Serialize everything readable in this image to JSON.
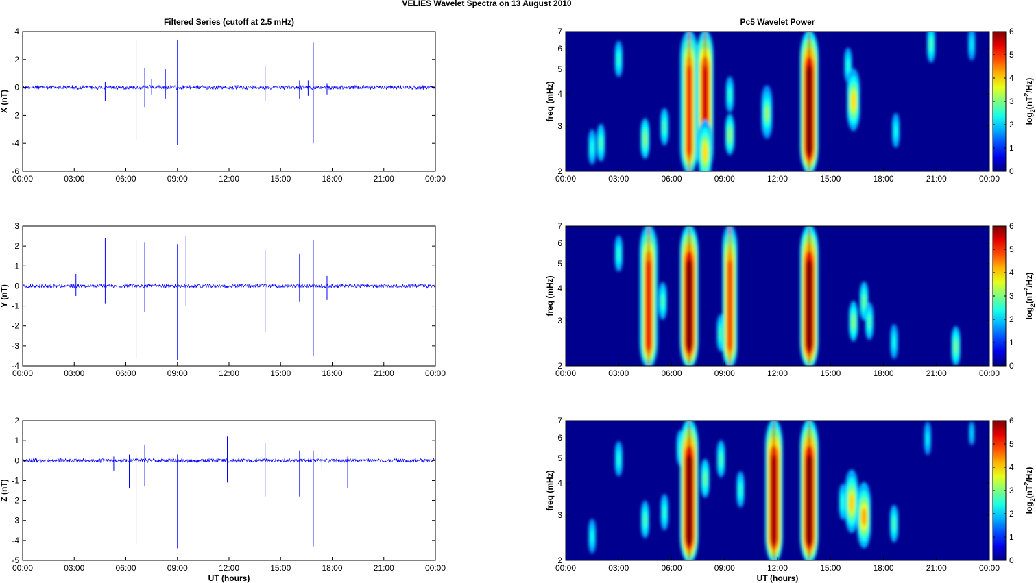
{
  "title": "VELIES Wavelet Spectra on 13 August    2010",
  "colors": {
    "series": "#0000ff",
    "axis": "#000000",
    "background": "#00008f"
  },
  "chart_data": [
    {
      "type": "line",
      "title": "Filtered Series (cutoff at 2.5 mHz)",
      "ylabel": "X (nT)",
      "xlabel": "",
      "xlim": [
        0,
        24
      ],
      "ylim": [
        -6,
        4
      ],
      "xticks": [
        "00:00",
        "03:00",
        "06:00",
        "09:00",
        "12:00",
        "15:00",
        "18:00",
        "21:00",
        "00:00"
      ],
      "yticks": [
        "-6",
        "-4",
        "-2",
        "0",
        "2",
        "4"
      ],
      "noise_amplitude": 0.15,
      "spikes": [
        {
          "x": 4.8,
          "values": [
            0.4,
            -1.0
          ]
        },
        {
          "x": 6.6,
          "values": [
            3.4,
            -3.8
          ]
        },
        {
          "x": 7.1,
          "values": [
            1.4,
            -1.4
          ]
        },
        {
          "x": 7.5,
          "values": [
            0.6,
            -0.5
          ]
        },
        {
          "x": 8.3,
          "values": [
            1.3,
            -0.8
          ]
        },
        {
          "x": 9.0,
          "values": [
            3.4,
            -4.1
          ]
        },
        {
          "x": 14.1,
          "values": [
            1.5,
            -1.0
          ]
        },
        {
          "x": 16.1,
          "values": [
            0.5,
            -0.8
          ]
        },
        {
          "x": 16.6,
          "values": [
            0.5,
            -0.6
          ]
        },
        {
          "x": 16.9,
          "values": [
            3.2,
            -4.0
          ]
        },
        {
          "x": 17.7,
          "values": [
            0.3,
            -0.5
          ]
        }
      ]
    },
    {
      "type": "line",
      "title": "",
      "ylabel": "Y (nT)",
      "xlabel": "",
      "xlim": [
        0,
        24
      ],
      "ylim": [
        -4,
        3
      ],
      "xticks": [
        "00:00",
        "03:00",
        "06:00",
        "09:00",
        "12:00",
        "15:00",
        "18:00",
        "21:00",
        "00:00"
      ],
      "yticks": [
        "-4",
        "-3",
        "-2",
        "-1",
        "0",
        "1",
        "2",
        "3"
      ],
      "noise_amplitude": 0.1,
      "spikes": [
        {
          "x": 3.1,
          "values": [
            0.6,
            -0.5
          ]
        },
        {
          "x": 4.8,
          "values": [
            2.4,
            -0.9
          ]
        },
        {
          "x": 6.6,
          "values": [
            2.3,
            -3.6
          ]
        },
        {
          "x": 7.1,
          "values": [
            2.2,
            -1.3
          ]
        },
        {
          "x": 9.0,
          "values": [
            2.1,
            -3.7
          ]
        },
        {
          "x": 9.5,
          "values": [
            2.5,
            -1.0
          ]
        },
        {
          "x": 14.1,
          "values": [
            1.8,
            -2.3
          ]
        },
        {
          "x": 16.1,
          "values": [
            1.6,
            -0.8
          ]
        },
        {
          "x": 16.9,
          "values": [
            2.3,
            -3.5
          ]
        },
        {
          "x": 17.7,
          "values": [
            0.5,
            -0.7
          ]
        }
      ]
    },
    {
      "type": "line",
      "title": "",
      "ylabel": "Z (nT)",
      "xlabel": "UT (hours)",
      "xlim": [
        0,
        24
      ],
      "ylim": [
        -5,
        2
      ],
      "xticks": [
        "00:00",
        "03:00",
        "06:00",
        "09:00",
        "12:00",
        "15:00",
        "18:00",
        "21:00",
        "00:00"
      ],
      "yticks": [
        "-5",
        "-4",
        "-3",
        "-2",
        "-1",
        "0",
        "1",
        "2"
      ],
      "noise_amplitude": 0.1,
      "spikes": [
        {
          "x": 5.3,
          "values": [
            0.2,
            -0.5
          ]
        },
        {
          "x": 6.2,
          "values": [
            0.3,
            -1.4
          ]
        },
        {
          "x": 6.6,
          "values": [
            0.3,
            -4.2
          ]
        },
        {
          "x": 7.1,
          "values": [
            0.8,
            -1.3
          ]
        },
        {
          "x": 9.0,
          "values": [
            0.3,
            -4.4
          ]
        },
        {
          "x": 11.9,
          "values": [
            1.2,
            -1.1
          ]
        },
        {
          "x": 14.1,
          "values": [
            0.9,
            -1.8
          ]
        },
        {
          "x": 16.1,
          "values": [
            0.5,
            -1.8
          ]
        },
        {
          "x": 16.9,
          "values": [
            0.5,
            -4.3
          ]
        },
        {
          "x": 17.4,
          "values": [
            0.4,
            -0.4
          ]
        },
        {
          "x": 18.9,
          "values": [
            0.2,
            -1.4
          ]
        }
      ]
    },
    {
      "type": "heatmap",
      "title": "Pc5 Wavelet Power",
      "ylabel": "freq (mHz)",
      "xlabel": "",
      "xlim": [
        0,
        24
      ],
      "ylim": [
        2,
        7
      ],
      "yscale": "log",
      "xticks": [
        "00:00",
        "03:00",
        "06:00",
        "09:00",
        "12:00",
        "15:00",
        "18:00",
        "21:00",
        "00:00"
      ],
      "yticks": [
        "2",
        "3",
        "4",
        "5",
        "6",
        "7"
      ],
      "colorbar": {
        "label": "log2(nT2/Hz)",
        "range": [
          0,
          6
        ],
        "ticks": [
          "0",
          "1",
          "2",
          "3",
          "4",
          "5",
          "6"
        ],
        "colormap": "jet"
      },
      "blobs": [
        {
          "t": 1.5,
          "f": 2.5,
          "power": 1.5
        },
        {
          "t": 2.0,
          "f": 2.6,
          "power": 1.8
        },
        {
          "t": 3.0,
          "f": 5.5,
          "power": 1.6
        },
        {
          "t": 4.5,
          "f": 2.7,
          "power": 2.2
        },
        {
          "t": 5.6,
          "f": 3.0,
          "power": 1.8
        },
        {
          "t": 7.0,
          "f": 3.8,
          "power": 5.8
        },
        {
          "t": 7.0,
          "f": 2.2,
          "power": 4.6
        },
        {
          "t": 7.9,
          "f": 4.5,
          "power": 5.2
        },
        {
          "t": 7.9,
          "f": 2.4,
          "power": 3.4
        },
        {
          "t": 9.3,
          "f": 2.8,
          "power": 2.3
        },
        {
          "t": 9.3,
          "f": 4.0,
          "power": 1.6
        },
        {
          "t": 11.4,
          "f": 3.4,
          "power": 2.4
        },
        {
          "t": 13.8,
          "f": 3.3,
          "power": 6.0
        },
        {
          "t": 16.0,
          "f": 5.2,
          "power": 1.5
        },
        {
          "t": 16.3,
          "f": 3.8,
          "power": 3.4
        },
        {
          "t": 18.7,
          "f": 2.9,
          "power": 1.4
        },
        {
          "t": 20.7,
          "f": 6.3,
          "power": 1.8
        },
        {
          "t": 23.0,
          "f": 6.3,
          "power": 1.2
        }
      ]
    },
    {
      "type": "heatmap",
      "title": "",
      "ylabel": "freq (mHz)",
      "xlabel": "",
      "xlim": [
        0,
        24
      ],
      "ylim": [
        2,
        7
      ],
      "yscale": "log",
      "xticks": [
        "00:00",
        "03:00",
        "06:00",
        "09:00",
        "12:00",
        "15:00",
        "18:00",
        "21:00",
        "00:00"
      ],
      "yticks": [
        "2",
        "3",
        "4",
        "5",
        "6",
        "7"
      ],
      "colorbar": {
        "label": "log2(nT2/Hz)",
        "range": [
          0,
          6
        ],
        "ticks": [
          "0",
          "1",
          "2",
          "3",
          "4",
          "5",
          "6"
        ],
        "colormap": "jet"
      },
      "blobs": [
        {
          "t": 3.0,
          "f": 5.5,
          "power": 1.6
        },
        {
          "t": 4.7,
          "f": 2.6,
          "power": 5.8
        },
        {
          "t": 4.7,
          "f": 4.5,
          "power": 4.8
        },
        {
          "t": 5.5,
          "f": 3.6,
          "power": 1.8
        },
        {
          "t": 7.0,
          "f": 3.0,
          "power": 6.0
        },
        {
          "t": 8.8,
          "f": 2.7,
          "power": 1.8
        },
        {
          "t": 9.3,
          "f": 3.2,
          "power": 4.4
        },
        {
          "t": 13.8,
          "f": 3.0,
          "power": 6.0
        },
        {
          "t": 16.3,
          "f": 3.0,
          "power": 2.2
        },
        {
          "t": 16.9,
          "f": 3.6,
          "power": 2.0
        },
        {
          "t": 17.2,
          "f": 3.0,
          "power": 1.8
        },
        {
          "t": 18.6,
          "f": 2.5,
          "power": 1.4
        },
        {
          "t": 22.1,
          "f": 2.4,
          "power": 2.1
        }
      ]
    },
    {
      "type": "heatmap",
      "title": "",
      "ylabel": "freq (mHz)",
      "xlabel": "UT (hours)",
      "xlim": [
        0,
        24
      ],
      "ylim": [
        2,
        7
      ],
      "yscale": "log",
      "xticks": [
        "00:00",
        "03:00",
        "06:00",
        "09:00",
        "12:00",
        "15:00",
        "18:00",
        "21:00",
        "00:00"
      ],
      "yticks": [
        "2",
        "3",
        "4",
        "5",
        "6",
        "7"
      ],
      "colorbar": {
        "label": "log2(nT2/Hz)",
        "range": [
          0,
          6
        ],
        "ticks": [
          "0",
          "1",
          "2",
          "3",
          "4",
          "5",
          "6"
        ],
        "colormap": "jet"
      },
      "blobs": [
        {
          "t": 1.5,
          "f": 2.5,
          "power": 1.4
        },
        {
          "t": 3.0,
          "f": 5.0,
          "power": 1.5
        },
        {
          "t": 4.5,
          "f": 2.9,
          "power": 1.8
        },
        {
          "t": 5.6,
          "f": 3.1,
          "power": 1.6
        },
        {
          "t": 6.5,
          "f": 5.5,
          "power": 1.6
        },
        {
          "t": 7.0,
          "f": 3.2,
          "power": 6.0
        },
        {
          "t": 7.9,
          "f": 4.2,
          "power": 2.0
        },
        {
          "t": 8.8,
          "f": 5.0,
          "power": 1.8
        },
        {
          "t": 9.9,
          "f": 3.8,
          "power": 1.6
        },
        {
          "t": 11.8,
          "f": 3.0,
          "power": 5.6
        },
        {
          "t": 13.8,
          "f": 3.0,
          "power": 6.0
        },
        {
          "t": 15.7,
          "f": 3.4,
          "power": 1.6
        },
        {
          "t": 16.2,
          "f": 3.4,
          "power": 3.5
        },
        {
          "t": 16.9,
          "f": 3.0,
          "power": 3.8
        },
        {
          "t": 18.6,
          "f": 2.8,
          "power": 1.8
        },
        {
          "t": 20.5,
          "f": 6.0,
          "power": 1.2
        },
        {
          "t": 23.0,
          "f": 6.3,
          "power": 1.0
        }
      ]
    }
  ]
}
